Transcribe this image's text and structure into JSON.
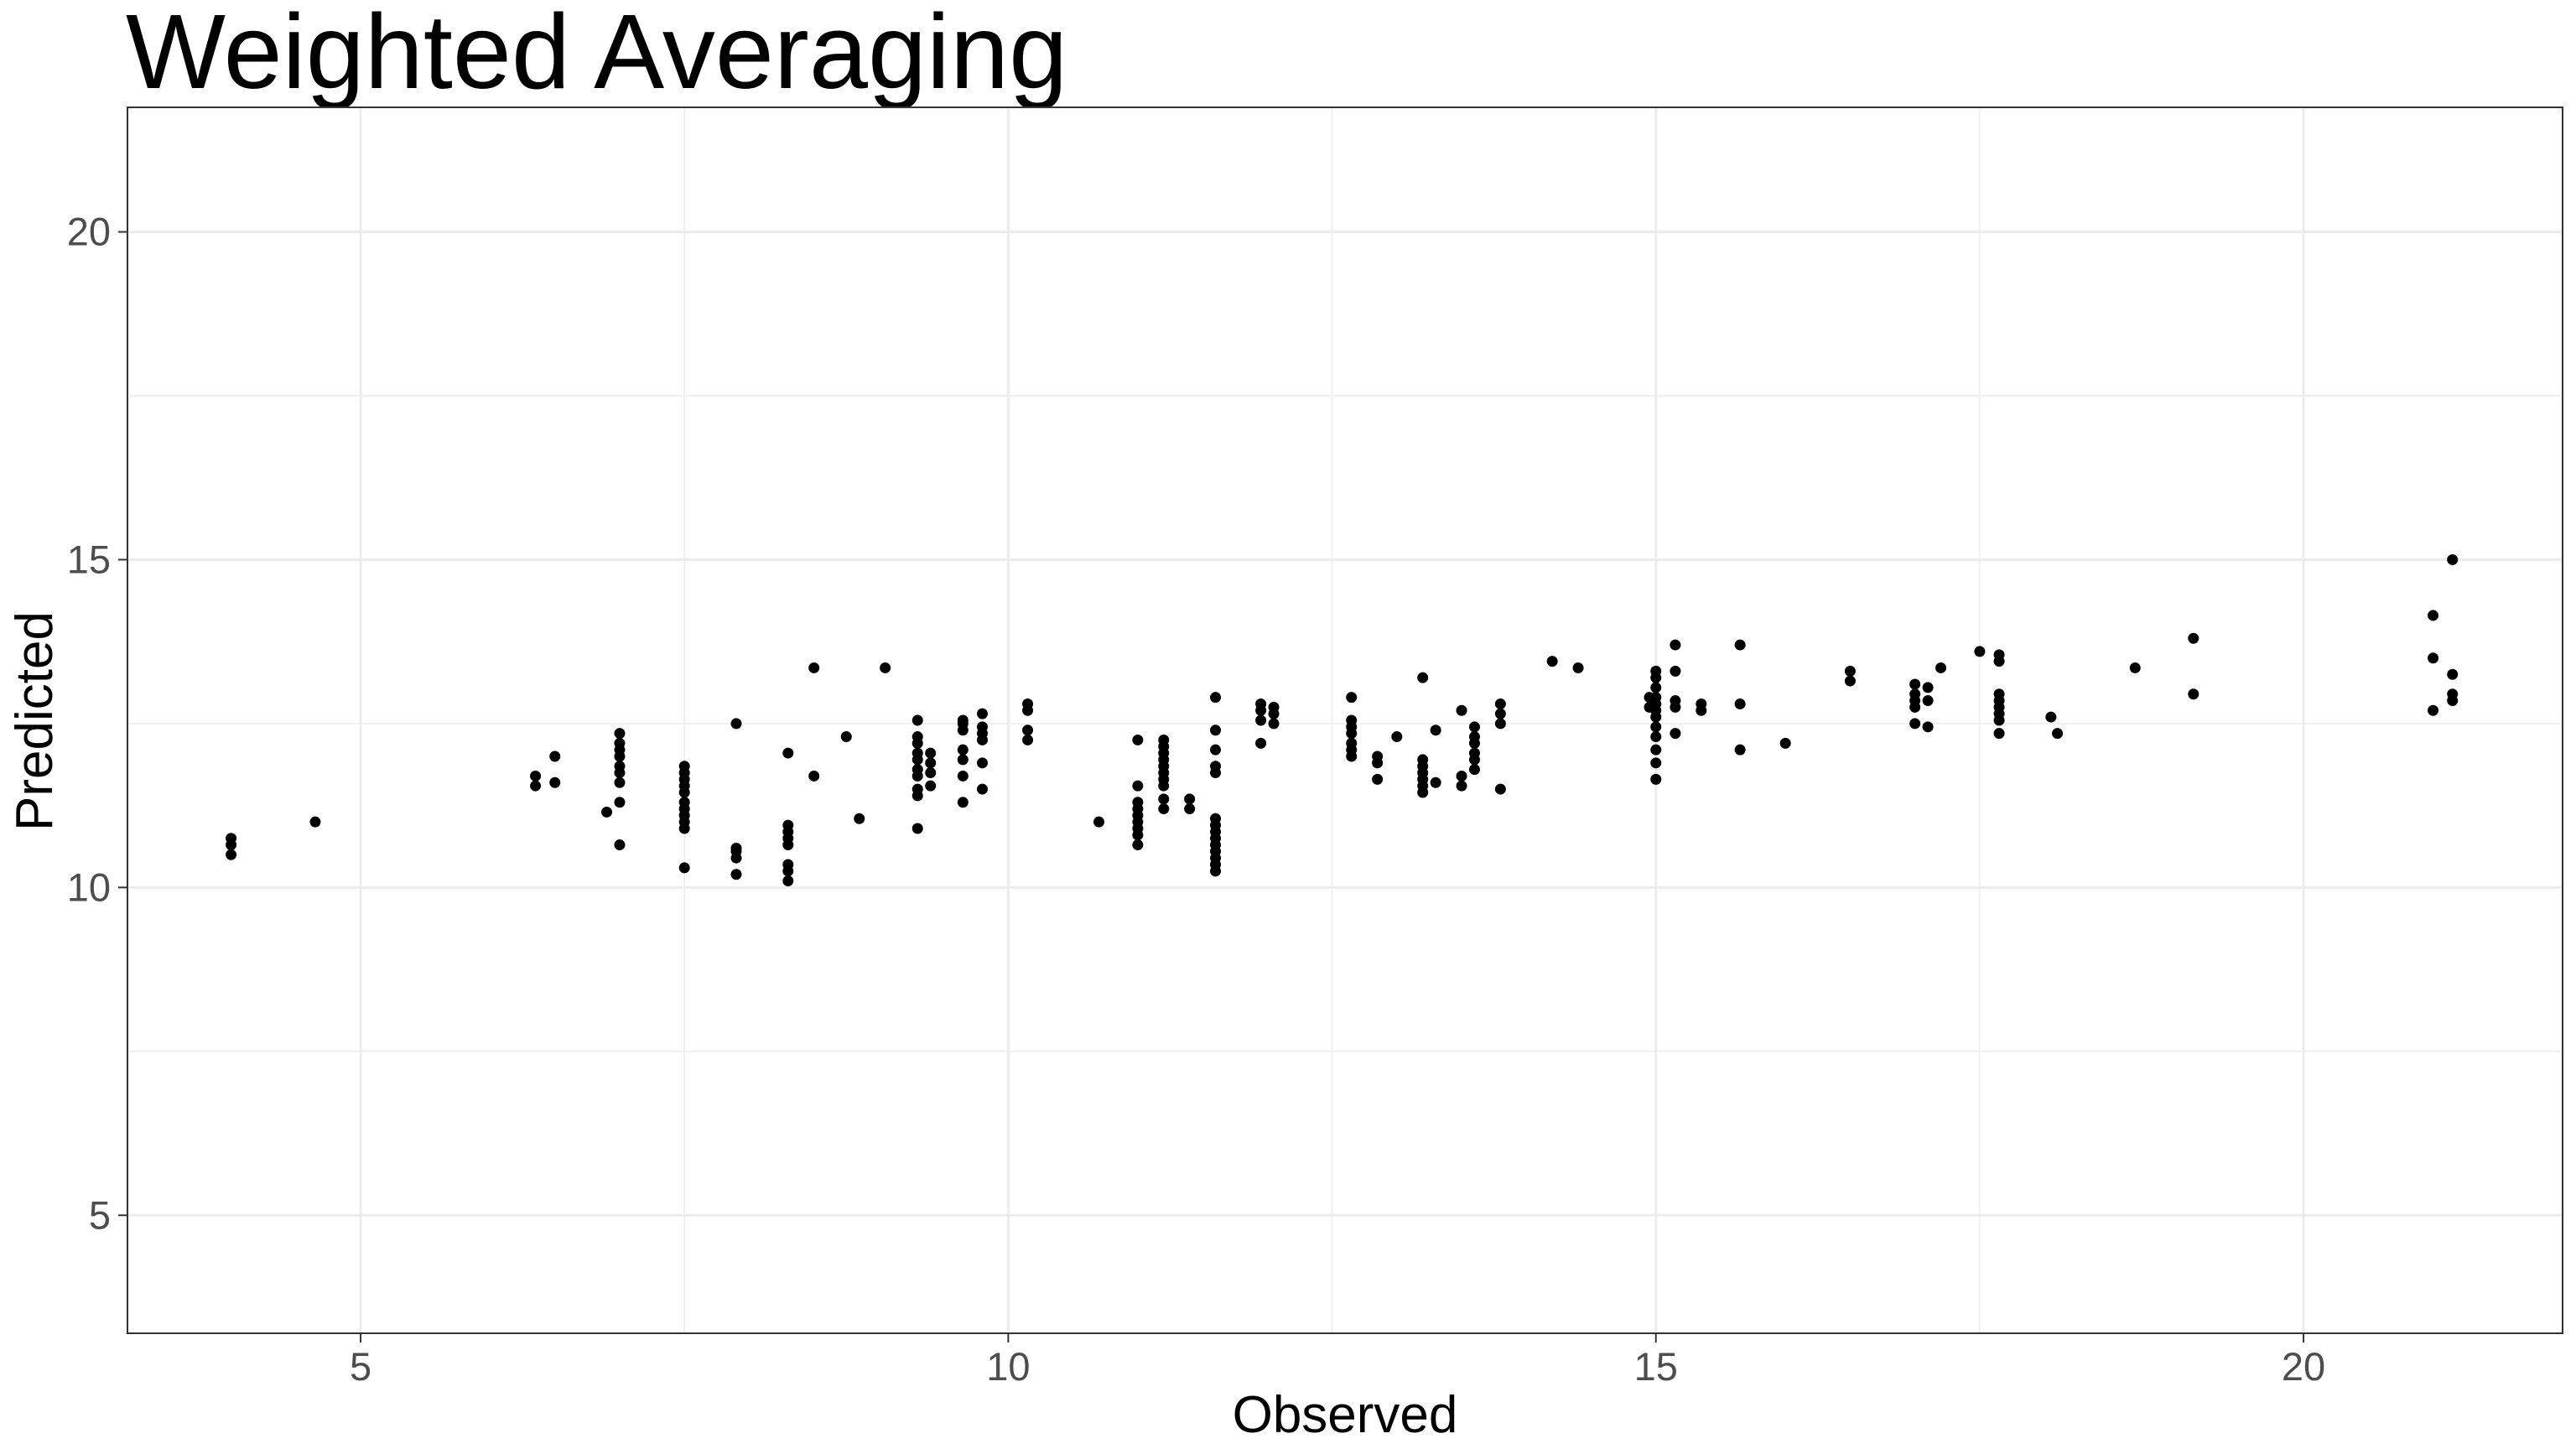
{
  "chart_data": {
    "type": "scatter",
    "title": "Weighted Averaging",
    "xlabel": "Observed",
    "ylabel": "Predicted",
    "xlim": [
      3.2,
      22.0
    ],
    "ylim": [
      3.2,
      21.9
    ],
    "x_ticks": [
      5,
      10,
      15,
      20
    ],
    "y_ticks": [
      5,
      10,
      15,
      20
    ],
    "grid": true,
    "point_color": "#000000",
    "panel_background": "#ffffff",
    "grid_color": "#ebebeb",
    "series": [
      {
        "points": [
          [
            4.0,
            10.5
          ],
          [
            4.0,
            10.65
          ],
          [
            4.0,
            10.75
          ],
          [
            4.65,
            11.0
          ],
          [
            6.35,
            11.55
          ],
          [
            6.35,
            11.7
          ],
          [
            6.5,
            11.6
          ],
          [
            6.5,
            12.0
          ],
          [
            6.9,
            11.15
          ],
          [
            7.0,
            10.65
          ],
          [
            7.0,
            11.3
          ],
          [
            7.0,
            11.6
          ],
          [
            7.0,
            11.75
          ],
          [
            7.0,
            11.85
          ],
          [
            7.0,
            12.0
          ],
          [
            7.0,
            12.1
          ],
          [
            7.0,
            12.2
          ],
          [
            7.0,
            12.35
          ],
          [
            7.5,
            10.3
          ],
          [
            7.5,
            10.9
          ],
          [
            7.5,
            11.0
          ],
          [
            7.5,
            11.1
          ],
          [
            7.5,
            11.2
          ],
          [
            7.5,
            11.3
          ],
          [
            7.5,
            11.45
          ],
          [
            7.5,
            11.55
          ],
          [
            7.5,
            11.65
          ],
          [
            7.5,
            11.75
          ],
          [
            7.5,
            11.85
          ],
          [
            7.9,
            10.2
          ],
          [
            7.9,
            10.45
          ],
          [
            7.9,
            10.55
          ],
          [
            7.9,
            10.6
          ],
          [
            7.9,
            12.5
          ],
          [
            8.3,
            10.1
          ],
          [
            8.3,
            10.25
          ],
          [
            8.3,
            10.35
          ],
          [
            8.3,
            10.65
          ],
          [
            8.3,
            10.75
          ],
          [
            8.3,
            10.85
          ],
          [
            8.3,
            10.95
          ],
          [
            8.3,
            12.05
          ],
          [
            8.5,
            11.7
          ],
          [
            8.5,
            13.35
          ],
          [
            8.75,
            12.3
          ],
          [
            8.85,
            11.05
          ],
          [
            9.05,
            13.35
          ],
          [
            9.3,
            10.9
          ],
          [
            9.3,
            11.4
          ],
          [
            9.3,
            11.5
          ],
          [
            9.3,
            11.7
          ],
          [
            9.3,
            11.8
          ],
          [
            9.3,
            11.95
          ],
          [
            9.3,
            12.05
          ],
          [
            9.3,
            12.2
          ],
          [
            9.3,
            12.3
          ],
          [
            9.3,
            12.55
          ],
          [
            9.4,
            11.55
          ],
          [
            9.4,
            11.75
          ],
          [
            9.4,
            11.9
          ],
          [
            9.4,
            12.05
          ],
          [
            9.65,
            11.3
          ],
          [
            9.65,
            11.7
          ],
          [
            9.65,
            11.95
          ],
          [
            9.65,
            12.1
          ],
          [
            9.65,
            12.4
          ],
          [
            9.65,
            12.5
          ],
          [
            9.65,
            12.55
          ],
          [
            9.8,
            11.5
          ],
          [
            9.8,
            11.9
          ],
          [
            9.8,
            12.25
          ],
          [
            9.8,
            12.35
          ],
          [
            9.8,
            12.45
          ],
          [
            9.8,
            12.65
          ],
          [
            10.15,
            12.25
          ],
          [
            10.15,
            12.4
          ],
          [
            10.15,
            12.7
          ],
          [
            10.15,
            12.8
          ],
          [
            10.7,
            11.0
          ],
          [
            11.0,
            10.65
          ],
          [
            11.0,
            10.8
          ],
          [
            11.0,
            10.9
          ],
          [
            11.0,
            11.0
          ],
          [
            11.0,
            11.1
          ],
          [
            11.0,
            11.2
          ],
          [
            11.0,
            11.3
          ],
          [
            11.0,
            11.55
          ],
          [
            11.0,
            12.25
          ],
          [
            11.2,
            11.2
          ],
          [
            11.2,
            11.35
          ],
          [
            11.2,
            11.55
          ],
          [
            11.2,
            11.65
          ],
          [
            11.2,
            11.75
          ],
          [
            11.2,
            11.85
          ],
          [
            11.2,
            11.95
          ],
          [
            11.2,
            12.05
          ],
          [
            11.2,
            12.15
          ],
          [
            11.2,
            12.25
          ],
          [
            11.4,
            11.2
          ],
          [
            11.4,
            11.35
          ],
          [
            11.6,
            10.25
          ],
          [
            11.6,
            10.35
          ],
          [
            11.6,
            10.45
          ],
          [
            11.6,
            10.55
          ],
          [
            11.6,
            10.65
          ],
          [
            11.6,
            10.75
          ],
          [
            11.6,
            10.85
          ],
          [
            11.6,
            10.95
          ],
          [
            11.6,
            11.05
          ],
          [
            11.6,
            11.75
          ],
          [
            11.6,
            11.85
          ],
          [
            11.6,
            12.1
          ],
          [
            11.6,
            12.4
          ],
          [
            11.6,
            12.9
          ],
          [
            11.95,
            12.2
          ],
          [
            11.95,
            12.55
          ],
          [
            11.95,
            12.7
          ],
          [
            11.95,
            12.8
          ],
          [
            12.05,
            12.5
          ],
          [
            12.05,
            12.65
          ],
          [
            12.05,
            12.75
          ],
          [
            12.65,
            12.0
          ],
          [
            12.65,
            12.1
          ],
          [
            12.65,
            12.2
          ],
          [
            12.65,
            12.35
          ],
          [
            12.65,
            12.45
          ],
          [
            12.65,
            12.55
          ],
          [
            12.65,
            12.9
          ],
          [
            12.85,
            11.65
          ],
          [
            12.85,
            11.9
          ],
          [
            12.85,
            12.0
          ],
          [
            13.0,
            12.3
          ],
          [
            13.2,
            11.45
          ],
          [
            13.2,
            11.55
          ],
          [
            13.2,
            11.65
          ],
          [
            13.2,
            11.75
          ],
          [
            13.2,
            11.85
          ],
          [
            13.2,
            11.95
          ],
          [
            13.2,
            13.2
          ],
          [
            13.3,
            11.6
          ],
          [
            13.3,
            12.4
          ],
          [
            13.5,
            11.55
          ],
          [
            13.5,
            11.7
          ],
          [
            13.5,
            12.7
          ],
          [
            13.6,
            11.8
          ],
          [
            13.6,
            11.95
          ],
          [
            13.6,
            12.05
          ],
          [
            13.6,
            12.2
          ],
          [
            13.6,
            12.3
          ],
          [
            13.6,
            12.45
          ],
          [
            13.8,
            11.5
          ],
          [
            13.8,
            12.5
          ],
          [
            13.8,
            12.65
          ],
          [
            13.8,
            12.8
          ],
          [
            14.2,
            13.45
          ],
          [
            14.4,
            13.35
          ],
          [
            14.95,
            12.75
          ],
          [
            14.95,
            12.9
          ],
          [
            15.0,
            11.65
          ],
          [
            15.0,
            11.9
          ],
          [
            15.0,
            12.1
          ],
          [
            15.0,
            12.3
          ],
          [
            15.0,
            12.45
          ],
          [
            15.0,
            12.6
          ],
          [
            15.0,
            12.7
          ],
          [
            15.0,
            12.8
          ],
          [
            15.0,
            12.9
          ],
          [
            15.0,
            13.05
          ],
          [
            15.0,
            13.2
          ],
          [
            15.0,
            13.3
          ],
          [
            15.15,
            12.35
          ],
          [
            15.15,
            12.75
          ],
          [
            15.15,
            12.85
          ],
          [
            15.15,
            13.3
          ],
          [
            15.15,
            13.7
          ],
          [
            15.35,
            12.7
          ],
          [
            15.35,
            12.8
          ],
          [
            15.65,
            12.1
          ],
          [
            15.65,
            12.8
          ],
          [
            15.65,
            13.7
          ],
          [
            16.0,
            12.2
          ],
          [
            16.5,
            13.15
          ],
          [
            16.5,
            13.3
          ],
          [
            17.0,
            12.5
          ],
          [
            17.0,
            12.75
          ],
          [
            17.0,
            12.85
          ],
          [
            17.0,
            12.95
          ],
          [
            17.0,
            13.1
          ],
          [
            17.1,
            12.45
          ],
          [
            17.1,
            12.85
          ],
          [
            17.1,
            13.05
          ],
          [
            17.2,
            13.35
          ],
          [
            17.5,
            13.6
          ],
          [
            17.65,
            12.35
          ],
          [
            17.65,
            12.55
          ],
          [
            17.65,
            12.65
          ],
          [
            17.65,
            12.75
          ],
          [
            17.65,
            12.85
          ],
          [
            17.65,
            12.95
          ],
          [
            17.65,
            13.45
          ],
          [
            17.65,
            13.55
          ],
          [
            18.05,
            12.6
          ],
          [
            18.1,
            12.35
          ],
          [
            18.7,
            13.35
          ],
          [
            19.15,
            12.95
          ],
          [
            19.15,
            13.8
          ],
          [
            21.0,
            12.7
          ],
          [
            21.0,
            13.5
          ],
          [
            21.0,
            14.15
          ],
          [
            21.15,
            12.85
          ],
          [
            21.15,
            12.95
          ],
          [
            21.15,
            13.25
          ],
          [
            21.15,
            15.0
          ]
        ]
      }
    ]
  }
}
